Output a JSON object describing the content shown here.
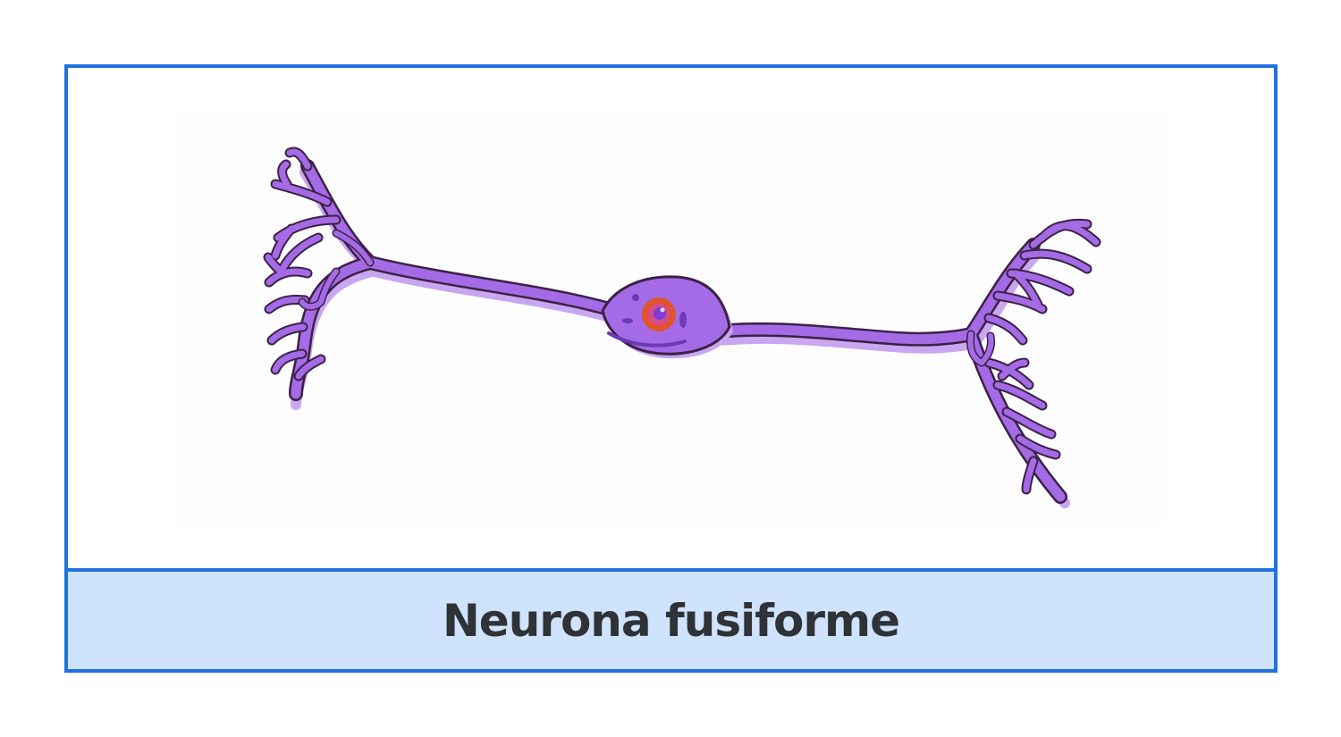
{
  "caption": "Neurona fusiforme",
  "colors": {
    "border": "#1f72e0",
    "caption_background": "#cfe3fd",
    "caption_text": "#2f3236",
    "neuron_fill": "#a56be6",
    "neuron_shadow": "#c9a6f0",
    "neuron_outline": "#3c2146",
    "nucleus": "#e0542b",
    "nucleolus": "#7a3fd0"
  }
}
